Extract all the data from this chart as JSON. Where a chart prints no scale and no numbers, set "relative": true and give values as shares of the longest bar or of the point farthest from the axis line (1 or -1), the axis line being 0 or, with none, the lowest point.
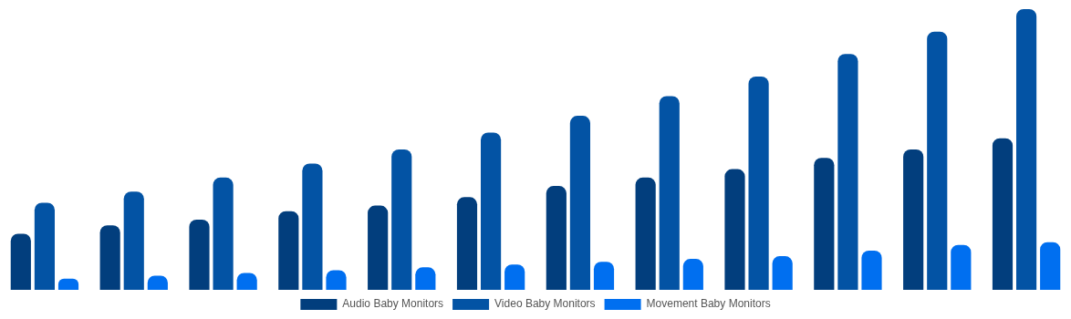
{
  "chart_data": {
    "type": "bar",
    "relative": true,
    "legend": "bottom",
    "categories": [
      null,
      null,
      null,
      null,
      null,
      null,
      null,
      null,
      null,
      null,
      null,
      null
    ],
    "series": [
      {
        "name": "Audio Baby Monitors",
        "color": "#023e7d",
        "values": [
          0.2,
          0.23,
          0.25,
          0.28,
          0.3,
          0.33,
          0.37,
          0.4,
          0.43,
          0.47,
          0.5,
          0.54
        ]
      },
      {
        "name": "Video Baby Monitors",
        "color": "#0353a4",
        "values": [
          0.31,
          0.35,
          0.4,
          0.45,
          0.5,
          0.56,
          0.62,
          0.69,
          0.76,
          0.84,
          0.92,
          1
        ]
      },
      {
        "name": "Movement Baby Monitors",
        "color": "#006ff0",
        "values": [
          0.04,
          0.05,
          0.06,
          0.07,
          0.08,
          0.09,
          0.1,
          0.11,
          0.12,
          0.14,
          0.16,
          0.17
        ]
      }
    ]
  }
}
